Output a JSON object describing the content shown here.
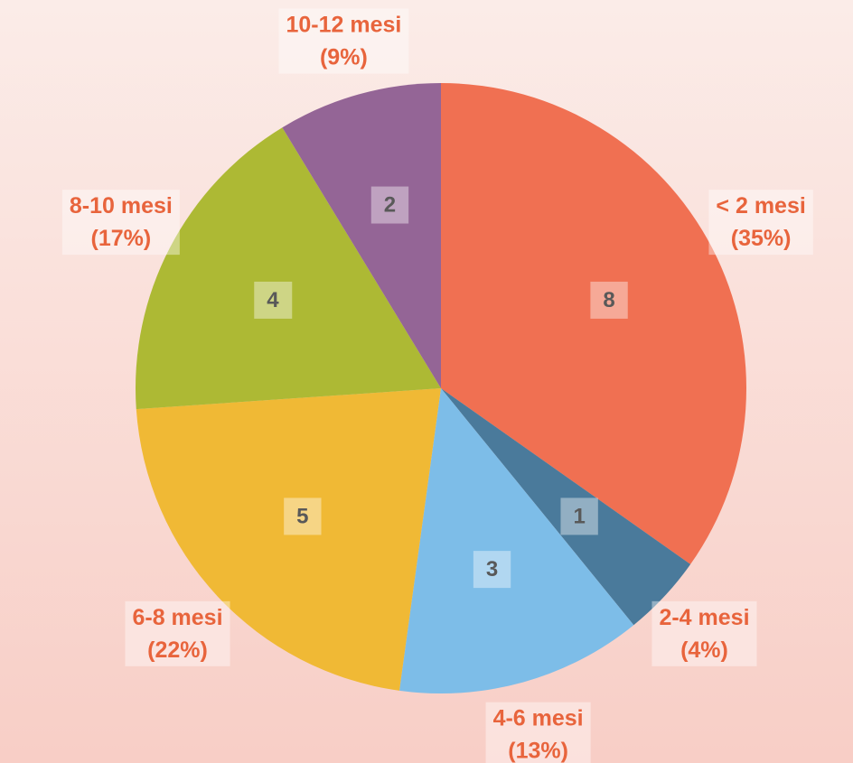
{
  "chart_data": {
    "type": "pie",
    "categories": [
      "< 2 mesi",
      "2-4 mesi",
      "4-6 mesi",
      "6-8 mesi",
      "8-10 mesi",
      "10-12 mesi"
    ],
    "values": [
      8,
      1,
      3,
      5,
      4,
      2
    ],
    "percent_labels": [
      "(35%)",
      "(4%)",
      "(13%)",
      "(22%)",
      "(17%)",
      "(9%)"
    ],
    "colors": [
      "#F07052",
      "#4A7A9B",
      "#7DBDE8",
      "#F0B935",
      "#ADB934",
      "#946596"
    ]
  }
}
